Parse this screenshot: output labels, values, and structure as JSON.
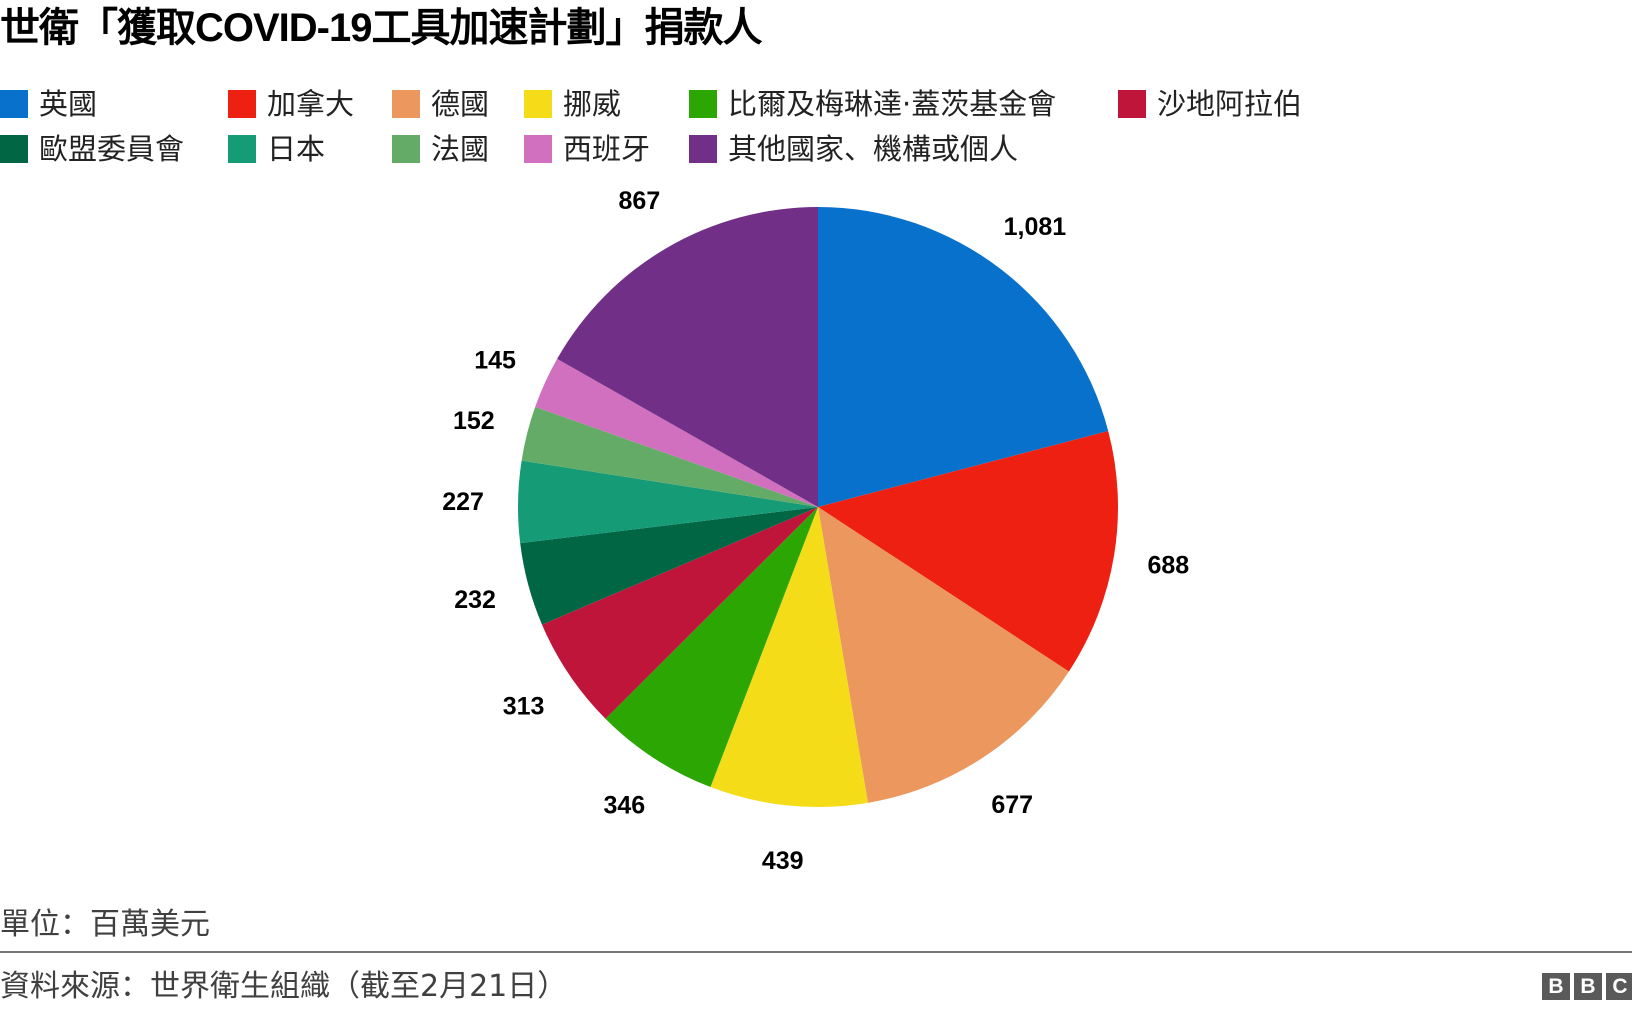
{
  "title": "世衛「獲取COVID-19工具加速計劃」捐款人",
  "legend": [
    {
      "label": "英國",
      "color": "#0871cb"
    },
    {
      "label": "加拿大",
      "color": "#ee2011"
    },
    {
      "label": "德國",
      "color": "#eb975e"
    },
    {
      "label": "挪威",
      "color": "#f5dc19"
    },
    {
      "label": "比爾及梅琳達·蓋茨基金會",
      "color": "#2ba602"
    },
    {
      "label": "沙地阿拉伯",
      "color": "#c0153a"
    },
    {
      "label": "歐盟委員會",
      "color": "#006643"
    },
    {
      "label": "日本",
      "color": "#169b77"
    },
    {
      "label": "法國",
      "color": "#63ab66"
    },
    {
      "label": "西班牙",
      "color": "#d170be"
    },
    {
      "label": "其他國家、機構或個人",
      "color": "#712f87"
    }
  ],
  "chart_data": {
    "type": "pie",
    "title": "世衛「獲取COVID-19工具加速計劃」捐款人",
    "unit": "百萬美元",
    "categories": [
      "英國",
      "加拿大",
      "德國",
      "挪威",
      "比爾及梅琳達·蓋茨基金會",
      "沙地阿拉伯",
      "歐盟委員會",
      "日本",
      "法國",
      "西班牙",
      "其他國家、機構或個人"
    ],
    "values": [
      1081,
      688,
      677,
      439,
      346,
      313,
      232,
      227,
      152,
      145,
      867
    ],
    "value_labels": [
      "1,081",
      "688",
      "677",
      "439",
      "346",
      "313",
      "232",
      "227",
      "152",
      "145",
      "867"
    ],
    "colors": [
      "#0871cb",
      "#ee2011",
      "#eb975e",
      "#f5dc19",
      "#2ba602",
      "#c0153a",
      "#006643",
      "#169b77",
      "#63ab66",
      "#d170be",
      "#712f87"
    ],
    "start_angle": "12 o'clock, clockwise",
    "legend_position": "top"
  },
  "footer": {
    "unit": "單位：百萬美元",
    "source": "資料來源：世界衛生組織（截至2月21日）",
    "logo": [
      "B",
      "B",
      "C"
    ]
  }
}
